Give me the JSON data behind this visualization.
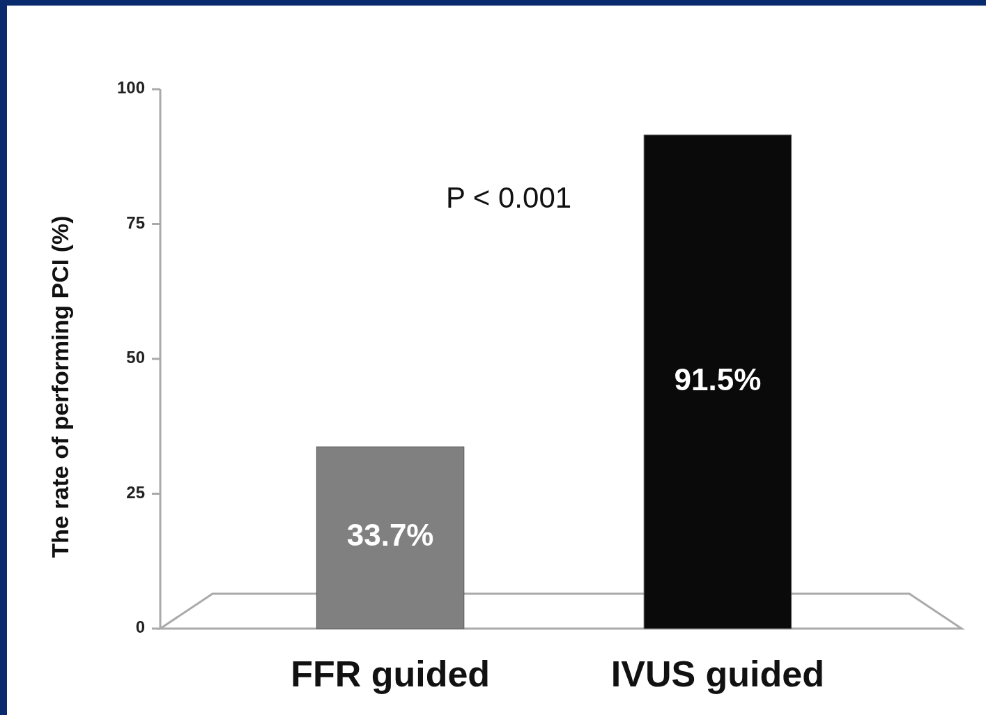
{
  "chart_data": {
    "type": "bar",
    "ylabel": "The rate of performing PCI (%)",
    "categories": [
      "FFR guided",
      "IVUS guided"
    ],
    "values": [
      33.7,
      91.5
    ],
    "colors": [
      "#808080",
      "#0a0a0a"
    ],
    "value_labels": [
      "33.7%",
      "91.5%"
    ],
    "ylim": [
      0,
      100
    ],
    "yticks": [
      0,
      25,
      50,
      75,
      100
    ],
    "grid": false,
    "annotations": [
      "P < 0.001"
    ]
  }
}
